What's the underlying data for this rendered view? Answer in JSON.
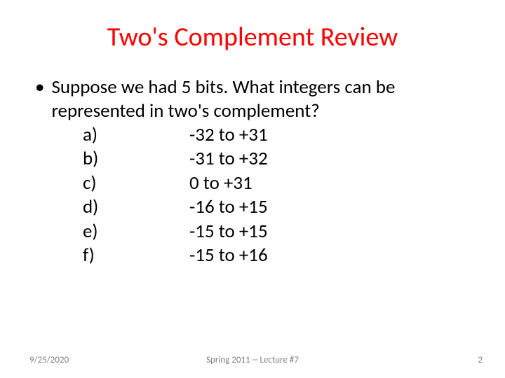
{
  "title": "Two's Complement Review",
  "question": "Suppose we had 5 bits. What integers can be represented in two's complement?",
  "options": [
    {
      "label": "a)",
      "value": "-32 to +31"
    },
    {
      "label": "b)",
      "value": "-31 to +32"
    },
    {
      "label": "c)",
      "value": " 0 to +31"
    },
    {
      "label": "d)",
      "value": "-16 to +15"
    },
    {
      "label": "e)",
      "value": "-15 to +15"
    },
    {
      "label": "f)",
      "value": "-15 to +16"
    }
  ],
  "footer": {
    "date": "9/25/2020",
    "course": "Spring 2011 -- Lecture #7",
    "page": "2"
  },
  "colors": {
    "title": "#ff0000",
    "text": "#000000",
    "footer": "#808080",
    "background": "#ffffff"
  }
}
